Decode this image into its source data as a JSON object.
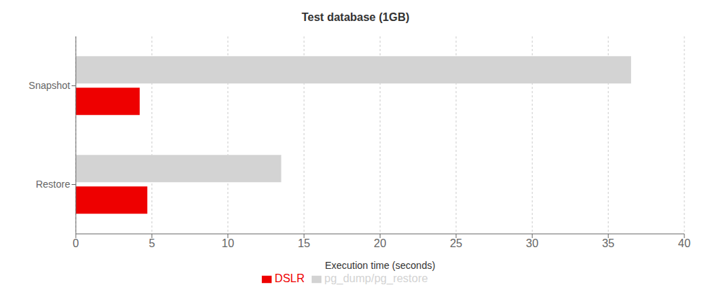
{
  "chart_data": {
    "type": "bar",
    "orientation": "horizontal",
    "title": "Test database (1GB)",
    "categories": [
      "Restore",
      "Snapshot"
    ],
    "series": [
      {
        "name": "pg_dump/pg_restore",
        "color": "#d3d3d3",
        "values": [
          13.5,
          36.5
        ]
      },
      {
        "name": "DSLR",
        "color": "#ee0000",
        "values": [
          4.7,
          4.2
        ]
      }
    ],
    "xlabel": "Execution time (seconds)",
    "xlim": [
      0,
      40
    ],
    "xticks": [
      0,
      5,
      10,
      15,
      20,
      25,
      30,
      35,
      40
    ],
    "grid": true,
    "legend": "bottom"
  }
}
